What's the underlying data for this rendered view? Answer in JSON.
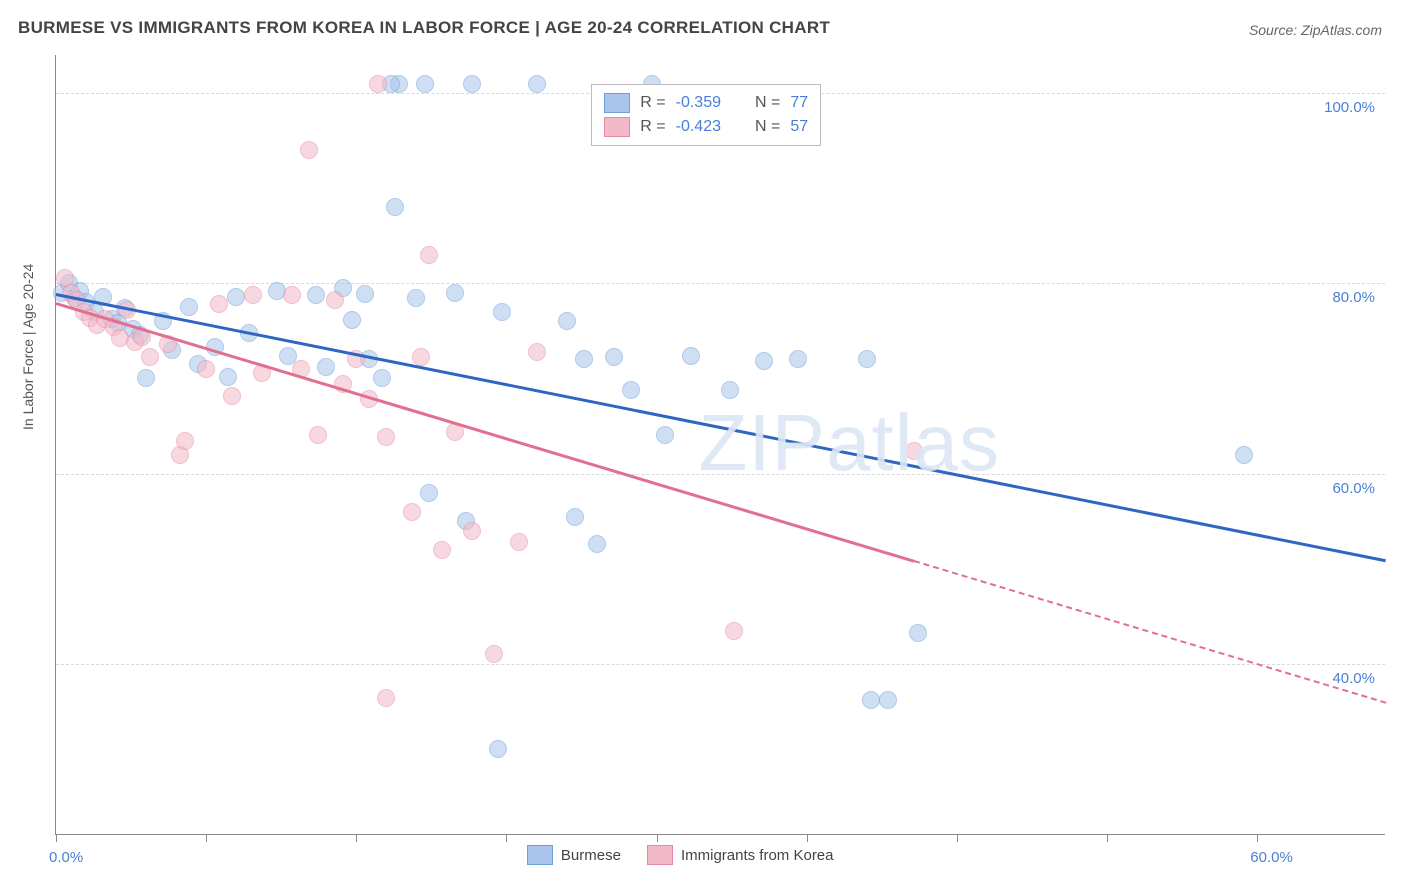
{
  "title": "BURMESE VS IMMIGRANTS FROM KOREA IN LABOR FORCE | AGE 20-24 CORRELATION CHART",
  "source": "Source: ZipAtlas.com",
  "ylabel": "In Labor Force | Age 20-24",
  "watermark": "ZIPatlas",
  "chart": {
    "type": "scatter",
    "background_color": "#ffffff",
    "grid_color": "#d8d8d8",
    "axis_color": "#888888",
    "tick_label_color": "#4a7fd6",
    "label_fontsize": 14,
    "tick_fontsize": 15,
    "title_fontsize": 17,
    "point_radius": 9,
    "point_opacity": 0.55,
    "xlim": [
      0,
      62
    ],
    "ylim": [
      22,
      104
    ],
    "x_ticks": [
      0,
      7,
      14,
      21,
      28,
      35,
      42,
      49,
      56
    ],
    "x_tick_labels": {
      "0": "0.0%",
      "56": "60.0%"
    },
    "y_gridlines": [
      40,
      60,
      80,
      100
    ],
    "y_tick_labels": {
      "40": "40.0%",
      "60": "60.0%",
      "80": "80.0%",
      "100": "100.0%"
    },
    "series": [
      {
        "name": "Burmese",
        "fill_color": "#a9c5eb",
        "stroke_color": "#6f9fd8",
        "line_color": "#2f66c4",
        "R": "-0.359",
        "N": "77",
        "trend": {
          "x1": 0,
          "y1": 79,
          "x2": 62,
          "y2": 51,
          "solid_until_x": 62
        },
        "points": [
          [
            0.3,
            79
          ],
          [
            0.6,
            80
          ],
          [
            0.9,
            78.5
          ],
          [
            1.1,
            79.2
          ],
          [
            1.4,
            78
          ],
          [
            1.8,
            77
          ],
          [
            2.2,
            78.6
          ],
          [
            2.6,
            76.2
          ],
          [
            2.9,
            75.8
          ],
          [
            3.2,
            77.4
          ],
          [
            3.6,
            75.2
          ],
          [
            3.9,
            74.6
          ],
          [
            4.2,
            70
          ],
          [
            5.0,
            76
          ],
          [
            5.4,
            73
          ],
          [
            6.2,
            77.5
          ],
          [
            6.6,
            71.5
          ],
          [
            7.4,
            73.3
          ],
          [
            8.0,
            70.2
          ],
          [
            8.4,
            78.6
          ],
          [
            9.0,
            74.8
          ],
          [
            10.3,
            79.2
          ],
          [
            10.8,
            72.4
          ],
          [
            12.1,
            78.8
          ],
          [
            12.6,
            71.2
          ],
          [
            13.4,
            79.5
          ],
          [
            13.8,
            76.1
          ],
          [
            14.4,
            78.9
          ],
          [
            14.6,
            72
          ],
          [
            15.2,
            70
          ],
          [
            15.8,
            88
          ],
          [
            16.0,
            101
          ],
          [
            16.8,
            78.5
          ],
          [
            15.6,
            101
          ],
          [
            17.4,
            58
          ],
          [
            17.2,
            101
          ],
          [
            18.6,
            79
          ],
          [
            19.4,
            101
          ],
          [
            20.8,
            77
          ],
          [
            19.1,
            55
          ],
          [
            22.4,
            101
          ],
          [
            23.8,
            76
          ],
          [
            24.6,
            72
          ],
          [
            24.2,
            55.4
          ],
          [
            26.0,
            72.2
          ],
          [
            26.8,
            68.8
          ],
          [
            27.8,
            101
          ],
          [
            28.4,
            64
          ],
          [
            29.6,
            72.4
          ],
          [
            31.4,
            68.8
          ],
          [
            33.0,
            71.8
          ],
          [
            34.6,
            72
          ],
          [
            37.8,
            72
          ],
          [
            20.6,
            31
          ],
          [
            25.2,
            52.6
          ],
          [
            38.0,
            36.2
          ],
          [
            38.8,
            36.2
          ],
          [
            40.2,
            43.2
          ],
          [
            55.4,
            62
          ]
        ]
      },
      {
        "name": "Immigrants from Korea",
        "fill_color": "#f4b9c8",
        "stroke_color": "#e58aa4",
        "line_color": "#e16f8f",
        "R": "-0.423",
        "N": "57",
        "trend": {
          "x1": 0,
          "y1": 78,
          "x2": 62,
          "y2": 36,
          "solid_until_x": 40
        },
        "points": [
          [
            0.4,
            80.6
          ],
          [
            0.7,
            79
          ],
          [
            1.0,
            78.2
          ],
          [
            1.3,
            77
          ],
          [
            1.6,
            76.4
          ],
          [
            1.9,
            75.6
          ],
          [
            2.3,
            76.2
          ],
          [
            2.7,
            75.4
          ],
          [
            3.0,
            74.2
          ],
          [
            3.3,
            77.2
          ],
          [
            3.7,
            73.8
          ],
          [
            4.0,
            74.4
          ],
          [
            4.4,
            72.2
          ],
          [
            5.2,
            73.6
          ],
          [
            5.8,
            62
          ],
          [
            6.0,
            63.4
          ],
          [
            7.0,
            71
          ],
          [
            7.6,
            77.8
          ],
          [
            8.2,
            68.2
          ],
          [
            9.2,
            78.8
          ],
          [
            9.6,
            70.6
          ],
          [
            11.0,
            78.8
          ],
          [
            11.4,
            71
          ],
          [
            11.8,
            94
          ],
          [
            12.2,
            64
          ],
          [
            13.0,
            78.2
          ],
          [
            13.4,
            69.4
          ],
          [
            14.0,
            72
          ],
          [
            14.6,
            67.8
          ],
          [
            15.4,
            63.8
          ],
          [
            15.0,
            101
          ],
          [
            16.6,
            56
          ],
          [
            17.0,
            72.2
          ],
          [
            17.4,
            83
          ],
          [
            18.6,
            64.4
          ],
          [
            18.0,
            52
          ],
          [
            15.4,
            36.4
          ],
          [
            19.4,
            54
          ],
          [
            20.4,
            41
          ],
          [
            21.6,
            52.8
          ],
          [
            22.4,
            72.8
          ],
          [
            31.6,
            43.4
          ],
          [
            40.0,
            62.4
          ]
        ]
      }
    ]
  },
  "legend_top": {
    "R_label": "R =",
    "N_label": "N ="
  },
  "legend_bottom": {
    "items": [
      "Burmese",
      "Immigrants from Korea"
    ]
  }
}
